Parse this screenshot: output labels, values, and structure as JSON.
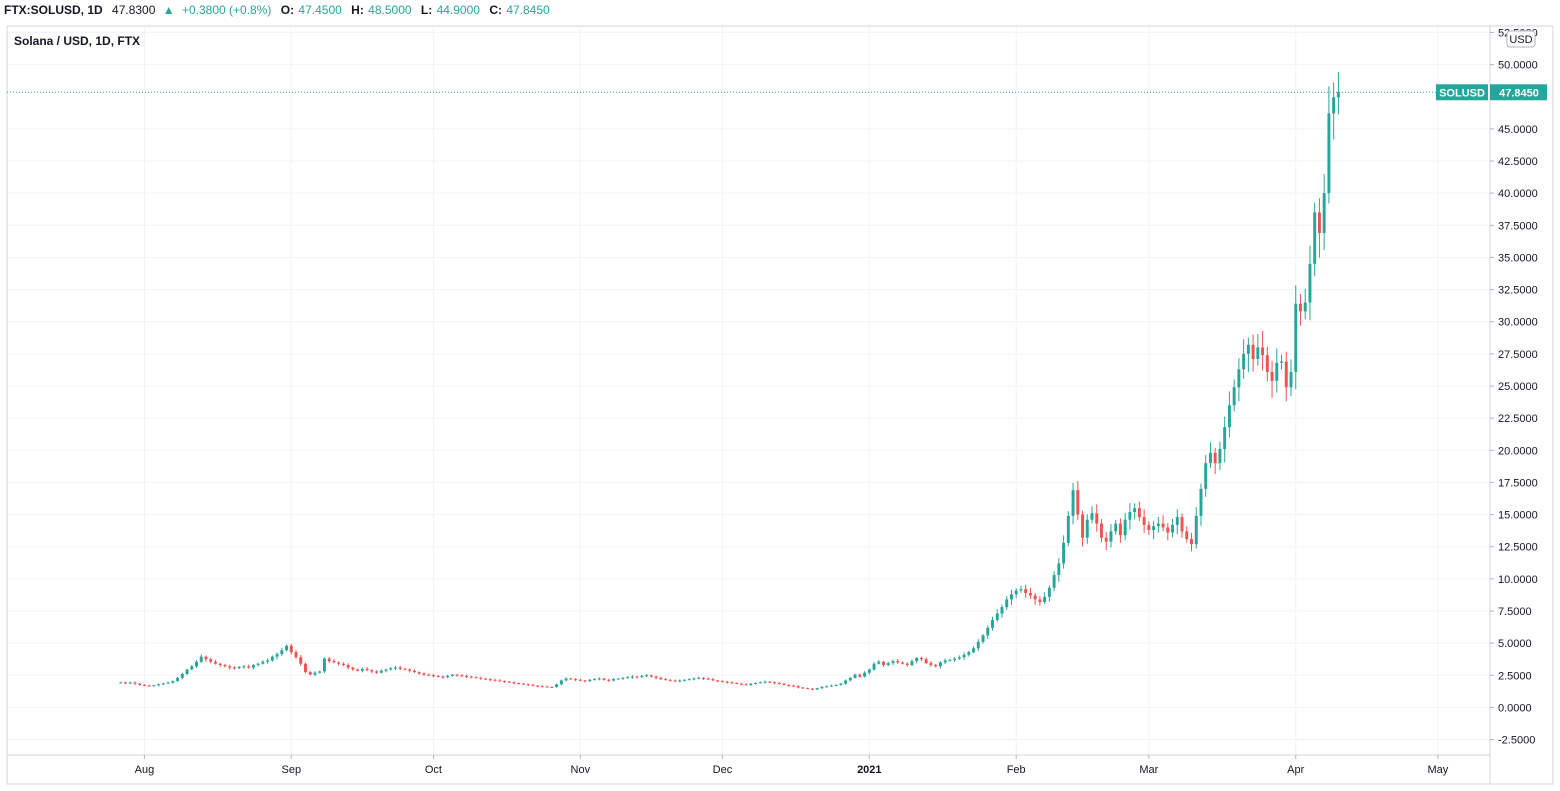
{
  "header": {
    "symbol": "FTX:SOLUSD, 1D",
    "last": "47.8300",
    "change": "+0.3800 (+0.8%)",
    "o_label": "O:",
    "o_value": "47.4500",
    "h_label": "H:",
    "h_value": "48.5000",
    "l_label": "L:",
    "l_value": "44.9000",
    "c_label": "C:",
    "c_value": "47.8450",
    "up_arrow": "up-triangle-icon"
  },
  "chart_title": "Solana / USD, 1D, FTX",
  "currency_badge": "USD",
  "price_tag": {
    "symbol": "SOLUSD",
    "value": "47.8450"
  },
  "colors": {
    "up": "#26a69a",
    "down": "#ef5350",
    "grid": "#f0f3fa",
    "text": "#131722"
  },
  "chart_data": {
    "type": "candlestick",
    "title": "Solana / USD, 1D, FTX",
    "xlabel": "",
    "ylabel": "",
    "ylim": [
      -3.7,
      53.0
    ],
    "y_ticks": [
      "-2.5000",
      "0.0000",
      "2.5000",
      "5.0000",
      "7.5000",
      "10.0000",
      "12.5000",
      "15.0000",
      "17.5000",
      "20.0000",
      "22.5000",
      "25.0000",
      "27.5000",
      "30.0000",
      "32.5000",
      "35.0000",
      "37.5000",
      "40.0000",
      "42.5000",
      "45.0000",
      "50.0000",
      "52.5000"
    ],
    "x_ticks": [
      {
        "date": "2020-08-01",
        "label": "Aug"
      },
      {
        "date": "2020-09-01",
        "label": "Sep"
      },
      {
        "date": "2020-10-01",
        "label": "Oct"
      },
      {
        "date": "2020-11-01",
        "label": "Nov"
      },
      {
        "date": "2020-12-01",
        "label": "Dec"
      },
      {
        "date": "2021-01-01",
        "label": "2021"
      },
      {
        "date": "2021-02-01",
        "label": "Feb"
      },
      {
        "date": "2021-03-01",
        "label": "Mar"
      },
      {
        "date": "2021-04-01",
        "label": "Apr"
      },
      {
        "date": "2021-05-01",
        "label": "May"
      }
    ],
    "x_range": [
      "2020-07-03",
      "2021-05-12"
    ],
    "grid": true,
    "last_price": 47.845,
    "series": [
      {
        "start_date": "2020-07-27",
        "closes": [
          1.95,
          1.88,
          1.93,
          1.85,
          1.75,
          1.7,
          1.68,
          1.72,
          1.8,
          1.86,
          1.93,
          2.05,
          2.3,
          2.6,
          2.95,
          3.2,
          3.55,
          3.95,
          3.75,
          3.55,
          3.4,
          3.3,
          3.2,
          3.1,
          3.05,
          3.15,
          3.2,
          3.1,
          3.3,
          3.4,
          3.55,
          3.65,
          3.95,
          4.15,
          4.45,
          4.8,
          4.3,
          3.9,
          3.4,
          2.75,
          2.55,
          2.7,
          2.8,
          3.8,
          3.6,
          3.5,
          3.4,
          3.3,
          3.1,
          2.95,
          2.85,
          3.0,
          2.9,
          2.8,
          2.7,
          2.85,
          2.95,
          3.05,
          3.1,
          3.0,
          2.95,
          2.85,
          2.75,
          2.65,
          2.55,
          2.5,
          2.45,
          2.4,
          2.35,
          2.45,
          2.55,
          2.5,
          2.45,
          2.4,
          2.35,
          2.3,
          2.25,
          2.2,
          2.15,
          2.1,
          2.05,
          2.0,
          1.95,
          1.9,
          1.85,
          1.8,
          1.75,
          1.7,
          1.65,
          1.62,
          1.6,
          1.58,
          1.8,
          2.1,
          2.25,
          2.2,
          2.15,
          2.1,
          2.05,
          2.15,
          2.2,
          2.25,
          2.15,
          2.1,
          2.2,
          2.25,
          2.3,
          2.35,
          2.4,
          2.35,
          2.45,
          2.5,
          2.4,
          2.3,
          2.2,
          2.15,
          2.1,
          2.05,
          2.1,
          2.15,
          2.2,
          2.25,
          2.3,
          2.25,
          2.2,
          2.1,
          2.05,
          2.0,
          1.95,
          1.9,
          1.85,
          1.8,
          1.75,
          1.85,
          1.9,
          1.95,
          2.0,
          1.95,
          1.9,
          1.85,
          1.75,
          1.7,
          1.65,
          1.55,
          1.5,
          1.45,
          1.4,
          1.5,
          1.6,
          1.65,
          1.7,
          1.75,
          1.85,
          2.1,
          2.3,
          2.55,
          2.4,
          2.7,
          2.95,
          3.4,
          3.55,
          3.3,
          3.45,
          3.6,
          3.5,
          3.4,
          3.3,
          3.6,
          3.85,
          3.75,
          3.45,
          3.3,
          3.2,
          3.5,
          3.65,
          3.7,
          3.8,
          3.9,
          4.1,
          4.3,
          4.6,
          5.1,
          5.6,
          6.2,
          6.8,
          7.3,
          7.8,
          8.4,
          8.8,
          9.1,
          9.2,
          8.9,
          8.7,
          8.4,
          8.2,
          8.6,
          9.3,
          10.3,
          11.2,
          12.8,
          14.9,
          16.9,
          15.0,
          13.2,
          14.6,
          15.1,
          14.3,
          13.2,
          12.9,
          13.7,
          14.3,
          13.4,
          14.6,
          15.2,
          15.5,
          14.8,
          14.2,
          13.8,
          14.1,
          14.3,
          14.0,
          13.6,
          14.2,
          14.8,
          13.7,
          13.1,
          12.7,
          14.9,
          17.0,
          19.0,
          19.8,
          19.0,
          20.1,
          21.8,
          23.5,
          24.9,
          26.3,
          27.5,
          28.2,
          27.1,
          28.0,
          27.4,
          26.1,
          25.4,
          26.8,
          26.9,
          24.9,
          26.1,
          31.4,
          30.8,
          31.5,
          34.5,
          38.5,
          36.9,
          40.0,
          46.2,
          47.45,
          47.845
        ]
      }
    ]
  }
}
